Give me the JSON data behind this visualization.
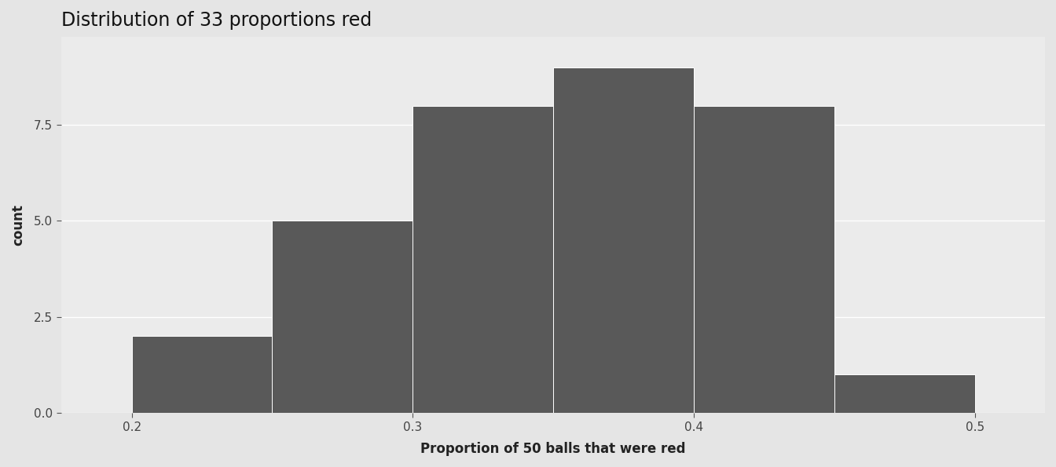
{
  "title": "Distribution of 33 proportions red",
  "xlabel": "Proportion of 50 balls that were red",
  "ylabel": "count",
  "bar_left_edges": [
    0.2,
    0.25,
    0.3,
    0.35,
    0.4,
    0.45
  ],
  "bar_heights": [
    2,
    5,
    8,
    9,
    8,
    1
  ],
  "bar_width": 0.05,
  "bar_color": "#595959",
  "bar_edgecolor": "#ffffff",
  "bar_linewidth": 0.7,
  "figure_background_color": "#e5e5e5",
  "panel_color": "#ebebeb",
  "grid_color": "#ffffff",
  "xlim": [
    0.175,
    0.525
  ],
  "ylim": [
    0,
    9.8
  ],
  "xticks": [
    0.2,
    0.3,
    0.4,
    0.5
  ],
  "yticks": [
    0.0,
    2.5,
    5.0,
    7.5
  ],
  "title_fontsize": 17,
  "axis_label_fontsize": 12,
  "tick_fontsize": 11,
  "tick_label_color": "#444444"
}
